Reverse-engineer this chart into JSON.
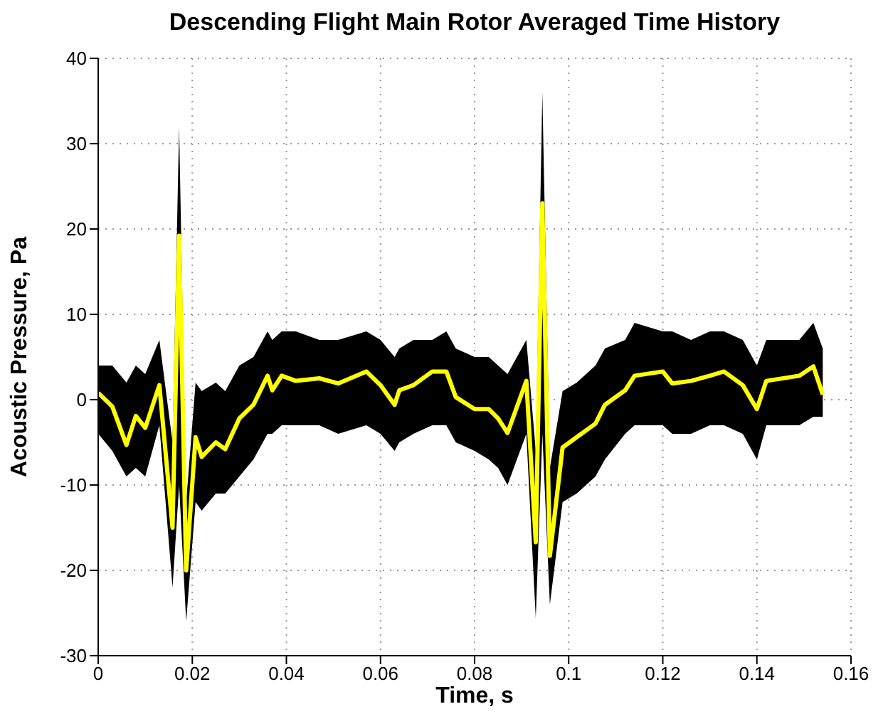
{
  "chart_data": {
    "type": "line",
    "title": "Descending Flight Main Rotor Averaged Time History",
    "xlabel": "Time, s",
    "ylabel": "Acoustic Pressure, Pa",
    "x": [
      0,
      0.003,
      0.006,
      0.008,
      0.01,
      0.013,
      0.0158,
      0.0172,
      0.0187,
      0.0207,
      0.022,
      0.025,
      0.027,
      0.03,
      0.033,
      0.036,
      0.037,
      0.039,
      0.042,
      0.047,
      0.051,
      0.057,
      0.06,
      0.063,
      0.064,
      0.067,
      0.071,
      0.074,
      0.076,
      0.08,
      0.083,
      0.085,
      0.087,
      0.091,
      0.093,
      0.0944,
      0.096,
      0.0987,
      0.1017,
      0.1057,
      0.1077,
      0.112,
      0.114,
      0.12,
      0.122,
      0.126,
      0.13,
      0.133,
      0.137,
      0.14,
      0.142,
      0.149,
      0.152,
      0.154
    ],
    "series": [
      {
        "color": "#ffff00",
        "values": [
          0.8,
          -0.8,
          -5.3,
          -1.9,
          -3.3,
          1.7,
          -15,
          19.2,
          -20,
          -4.4,
          -6.7,
          -5,
          -5.8,
          -2.2,
          -0.6,
          2.8,
          1.1,
          2.8,
          2.2,
          2.5,
          1.9,
          3.3,
          1.7,
          -0.6,
          1.1,
          1.7,
          3.3,
          3.3,
          0.3,
          -1.1,
          -1.1,
          -2.2,
          -3.9,
          2.2,
          -16.7,
          23,
          -18.3,
          -5.6,
          -4.4,
          -2.8,
          -0.6,
          1.1,
          2.8,
          3.3,
          1.9,
          2.2,
          2.8,
          3.3,
          1.7,
          -1.1,
          2.2,
          2.8,
          3.9,
          0.6
        ],
        "lower": [
          -4,
          -6,
          -9,
          -8,
          -9,
          -3,
          -22,
          -10,
          -26,
          -12,
          -13,
          -11,
          -11,
          -9,
          -7,
          -4,
          -4,
          -3,
          -3,
          -3,
          -4,
          -3,
          -4,
          -6,
          -5,
          -4,
          -3,
          -3,
          -5,
          -6,
          -7,
          -8,
          -10,
          -4,
          -25.6,
          -4,
          -24,
          -12,
          -11,
          -9,
          -7,
          -4,
          -3,
          -3,
          -4,
          -4,
          -3,
          -3,
          -4,
          -7,
          -3,
          -3,
          -2,
          -2
        ],
        "upper": [
          4,
          4,
          2,
          4,
          3,
          7,
          -5,
          32,
          -12,
          2,
          1,
          2,
          1,
          4,
          5,
          8,
          7,
          8,
          8,
          7,
          7,
          8,
          7,
          5,
          6,
          7,
          7,
          8,
          6,
          5,
          5,
          4,
          3,
          7,
          -6,
          36,
          -8,
          1,
          2,
          4,
          6,
          7,
          9,
          8,
          8,
          7,
          8,
          8,
          7,
          4,
          7,
          7,
          9,
          6
        ]
      }
    ],
    "xlim": [
      0,
      0.16
    ],
    "xticks": [
      0,
      0.02,
      0.04,
      0.06,
      0.08,
      0.1,
      0.12,
      0.14,
      0.16
    ],
    "ylim": [
      -30,
      40
    ],
    "yticks": [
      -30,
      -20,
      -10,
      0,
      10,
      20,
      30,
      40
    ],
    "grid": true,
    "line_style": "solid",
    "marker": "none"
  }
}
